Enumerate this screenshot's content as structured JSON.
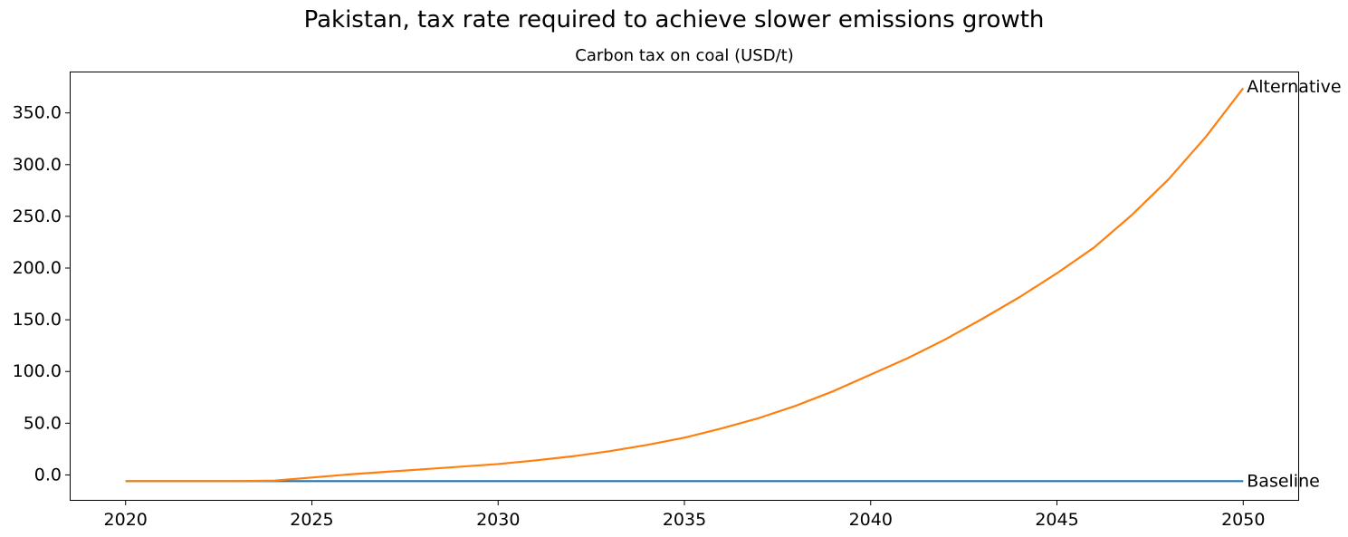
{
  "figure": {
    "title": "Pakistan, tax rate required to achieve slower emissions growth",
    "axes_title": "Carbon tax on coal (USD/t)"
  },
  "colors": {
    "baseline_line": "#1f77b4",
    "alternative_line": "#ff7f0e",
    "axis": "#000000",
    "text": "#000000",
    "background": "#ffffff"
  },
  "chart_data": {
    "type": "line",
    "title": "Carbon tax on coal (USD/t)",
    "suptitle": "Pakistan, tax rate required to achieve slower emissions growth",
    "xlabel": "",
    "ylabel": "",
    "grid": false,
    "legend_position": "end-of-line-labels",
    "xlim": [
      2018.5,
      2051.5
    ],
    "ylim": [
      -25,
      390
    ],
    "xticks": {
      "values": [
        2020,
        2025,
        2030,
        2035,
        2040,
        2045,
        2050
      ],
      "labels": [
        "2020",
        "2025",
        "2030",
        "2035",
        "2040",
        "2045",
        "2050"
      ]
    },
    "yticks": {
      "values": [
        0,
        50,
        100,
        150,
        200,
        250,
        300,
        350
      ],
      "labels": [
        "0.0",
        "50.0",
        "100.0",
        "150.0",
        "200.0",
        "250.0",
        "300.0",
        "350.0"
      ]
    },
    "x": [
      2020,
      2021,
      2022,
      2023,
      2024,
      2025,
      2026,
      2027,
      2028,
      2029,
      2030,
      2031,
      2032,
      2033,
      2034,
      2035,
      2036,
      2037,
      2038,
      2039,
      2040,
      2041,
      2042,
      2043,
      2044,
      2045,
      2046,
      2047,
      2048,
      2049,
      2050
    ],
    "series": [
      {
        "name": "Baseline",
        "color": "#1f77b4",
        "values": [
          -6,
          -6,
          -6,
          -6,
          -6,
          -6,
          -6,
          -6,
          -6,
          -6,
          -6,
          -6,
          -6,
          -6,
          -6,
          -6,
          -6,
          -6,
          -6,
          -6,
          -6,
          -6,
          -6,
          -6,
          -6,
          -6,
          -6,
          -6,
          -6,
          -6,
          -6
        ]
      },
      {
        "name": "Alternative",
        "color": "#ff7f0e",
        "values": [
          -6,
          -6,
          -6,
          -6,
          -5.5,
          -2.5,
          0.5,
          3,
          5.5,
          8,
          10.5,
          14,
          18,
          23,
          29,
          36,
          45,
          55,
          67,
          81,
          97,
          113,
          131,
          151,
          172,
          195,
          220,
          251,
          286,
          327,
          374
        ]
      }
    ],
    "annotations": [
      {
        "text": "Alternative",
        "x": 2050,
        "y": 375
      },
      {
        "text": "Baseline",
        "x": 2050,
        "y": -6
      }
    ]
  }
}
